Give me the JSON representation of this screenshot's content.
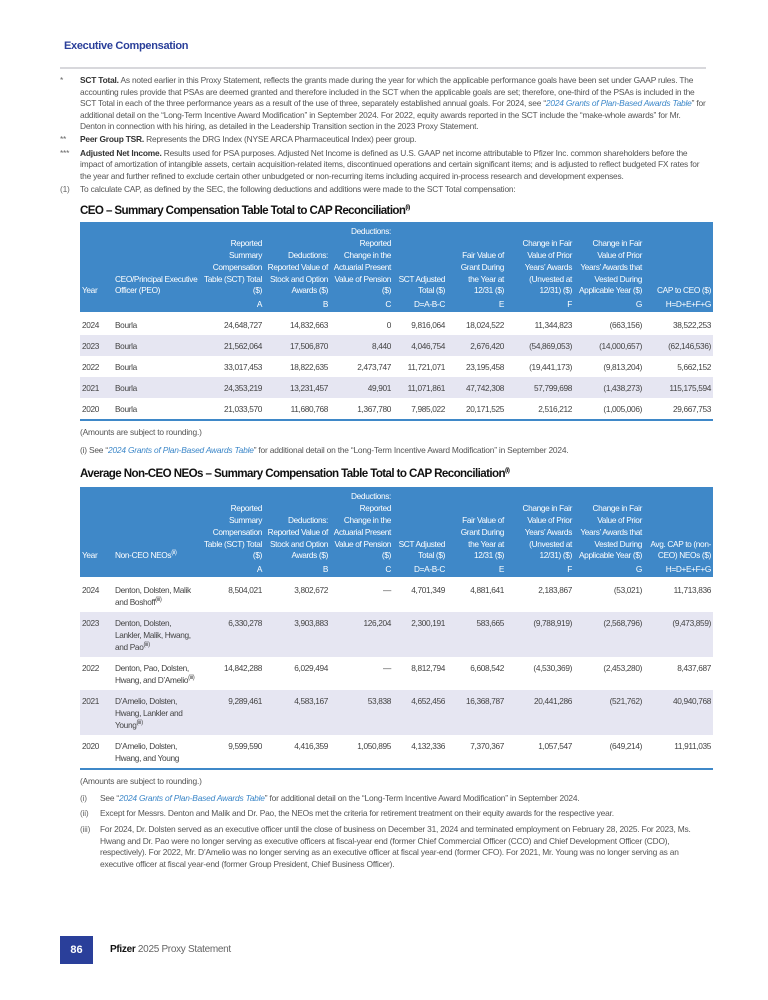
{
  "section_title": "Executive Compensation",
  "notes": [
    {
      "mark": "*",
      "bold": "SCT Total.",
      "text": " As noted earlier in this Proxy Statement, reflects the grants made during the year for which the applicable performance goals have been set under GAAP rules. The accounting rules provide that PSAs are deemed granted and therefore included in the SCT when the applicable goals are set; therefore, one-third of the PSAs is included in the SCT Total in each of the three performance years as a result of the use of three, separately established annual goals. For 2024, see “",
      "link": "2024 Grants of Plan-Based Awards Table",
      "text2": "” for additional detail on the “Long-Term Incentive Award Modification” in September 2024. For 2022, equity awards reported in the SCT include the “make-whole awards” for Mr. Denton in connection with his hiring, as detailed in the Leadership Transition section in the 2023 Proxy Statement."
    },
    {
      "mark": "**",
      "bold": "Peer Group TSR.",
      "text": " Represents the DRG Index (NYSE ARCA Pharmaceutical Index) peer group."
    },
    {
      "mark": "***",
      "bold": "Adjusted Net Income.",
      "text": " Results used for PSA purposes. Adjusted Net Income is defined as U.S. GAAP net income attributable to Pfizer Inc. common shareholders before the impact of amortization of intangible assets, certain acquisition-related items, discontinued operations and certain significant items; and is adjusted to reflect budgeted FX rates for the year and further refined to exclude certain other unbudgeted or non-recurring items including acquired in-process research and development expenses."
    },
    {
      "mark": "(1)",
      "bold": "",
      "text": "To calculate CAP, as defined by the SEC, the following deductions and additions were made to the SCT Total compensation:"
    }
  ],
  "ceo_table": {
    "title": "CEO – Summary Compensation Table Total to CAP Reconciliation",
    "title_sup": "(i)",
    "headers": [
      "Year",
      "CEO/Principal Executive Officer (PEO)",
      "Reported Summary Compensation Table (SCT) Total ($)",
      "Deductions: Reported Value of Stock and Option Awards ($)",
      "Deductions: Reported Change in the Actuarial Present Value of Pension ($)",
      "SCT Adjusted Total ($)",
      "Fair Value of Grant During the Year at 12/31 ($)",
      "Change in Fair Value of Prior Years’ Awards (Unvested at 12/31) ($)",
      "Change in Fair Value of Prior Years’ Awards that Vested During Applicable Year ($)",
      "CAP to CEO ($)"
    ],
    "letters": [
      "",
      "",
      "A",
      "B",
      "C",
      "D=A-B-C",
      "E",
      "F",
      "G",
      "H=D+E+F+G"
    ],
    "rows": [
      [
        "2024",
        "Bourla",
        "24,648,727",
        "14,832,663",
        "0",
        "9,816,064",
        "18,024,522",
        "11,344,823",
        "(663,156)",
        "38,522,253"
      ],
      [
        "2023",
        "Bourla",
        "21,562,064",
        "17,506,870",
        "8,440",
        "4,046,754",
        "2,676,420",
        "(54,869,053)",
        "(14,000,657)",
        "(62,146,536)"
      ],
      [
        "2022",
        "Bourla",
        "33,017,453",
        "18,822,635",
        "2,473,747",
        "11,721,071",
        "23,195,458",
        "(19,441,173)",
        "(9,813,204)",
        "5,662,152"
      ],
      [
        "2021",
        "Bourla",
        "24,353,219",
        "13,231,457",
        "49,901",
        "11,071,861",
        "47,742,308",
        "57,799,698",
        "(1,438,273)",
        "115,175,594"
      ],
      [
        "2020",
        "Bourla",
        "21,033,570",
        "11,680,768",
        "1,367,780",
        "7,985,022",
        "20,171,525",
        "2,516,212",
        "(1,005,006)",
        "29,667,753"
      ]
    ],
    "rounding": "(Amounts are subject to rounding.)",
    "footnote": {
      "mark": "(i) See “",
      "link": "2024 Grants of Plan-Based Awards Table",
      "text": "” for additional detail on the “Long-Term Incentive Award Modification” in September 2024."
    }
  },
  "neo_table": {
    "title": "Average Non-CEO NEOs – Summary Compensation Table Total to CAP Reconciliation",
    "title_sup": "(i)",
    "headers": [
      "Year",
      "Non-CEO NEOs",
      "Reported Summary Compensation Table (SCT) Total ($)",
      "Deductions: Reported Value of Stock and Option Awards ($)",
      "Deductions: Reported Change in the Actuarial Present Value of Pension ($)",
      "SCT Adjusted Total ($)",
      "Fair Value of Grant During the Year at 12/31 ($)",
      "Change in Fair Value of Prior Years’ Awards (Unvested at 12/31) ($)",
      "Change in Fair Value of Prior Years’ Awards that Vested During Applicable Year ($)",
      "Avg. CAP to (non-CEO) NEOs ($)"
    ],
    "name_header_sup": "(ii)",
    "letters": [
      "",
      "",
      "A",
      "B",
      "C",
      "D=A-B-C",
      "E",
      "F",
      "G",
      "H=D+E+F+G"
    ],
    "rows": [
      {
        "cells": [
          "2024",
          "Denton, Dolsten, Malik and Boshoff",
          "8,504,021",
          "3,802,672",
          "—",
          "4,701,349",
          "4,881,641",
          "2,183,867",
          "(53,021)",
          "11,713,836"
        ],
        "sup": "(iii)"
      },
      {
        "cells": [
          "2023",
          "Denton, Dolsten, Lankler, Malik, Hwang, and Pao",
          "6,330,278",
          "3,903,883",
          "126,204",
          "2,300,191",
          "583,665",
          "(9,788,919)",
          "(2,568,796)",
          "(9,473,859)"
        ],
        "sup": "(iii)"
      },
      {
        "cells": [
          "2022",
          "Denton, Pao, Dolsten, Hwang, and D’Amelio",
          "14,842,288",
          "6,029,494",
          "—",
          "8,812,794",
          "6,608,542",
          "(4,530,369)",
          "(2,453,280)",
          "8,437,687"
        ],
        "sup": "(iii)"
      },
      {
        "cells": [
          "2021",
          "D’Amelio, Dolsten, Hwang, Lankler and Young",
          "9,289,461",
          "4,583,167",
          "53,838",
          "4,652,456",
          "16,368,787",
          "20,441,286",
          "(521,762)",
          "40,940,768"
        ],
        "sup": "(iii)"
      },
      {
        "cells": [
          "2020",
          "D’Amelio, Dolsten, Hwang, and Young",
          "9,599,590",
          "4,416,359",
          "1,050,895",
          "4,132,336",
          "7,370,367",
          "1,057,547",
          "(649,214)",
          "11,911,035"
        ],
        "sup": ""
      }
    ],
    "rounding": "(Amounts are subject to rounding.)",
    "footnotes": [
      {
        "mark": "(i)",
        "pre": "See “",
        "link": "2024 Grants of Plan-Based Awards Table",
        "text": "” for additional detail on the “Long-Term Incentive Award Modification” in September 2024."
      },
      {
        "mark": "(ii)",
        "pre": "",
        "link": "",
        "text": "Except for Messrs. Denton and Malik and Dr. Pao, the NEOs met the criteria for retirement treatment on their equity awards for the respective year."
      },
      {
        "mark": "(iii)",
        "pre": "",
        "link": "",
        "text": "For 2024, Dr. Dolsten served as an executive officer until the close of business on December 31, 2024 and terminated employment on February 28, 2025. For 2023, Ms. Hwang and Dr. Pao were no longer serving as executive officers at fiscal-year end (former Chief Commercial Officer (CCO) and Chief Development Officer (CDO), respectively). For 2022, Mr. D’Amelio was no longer serving as an executive officer at fiscal year-end (former CFO). For 2021, Mr. Young was no longer serving as an executive officer at fiscal year-end (former Group President, Chief Business Officer)."
      }
    ]
  },
  "footer": {
    "page_number": "86",
    "brand": "Pfizer",
    "doc": " 2025 Proxy Statement"
  },
  "colors": {
    "accent": "#2a3f9a",
    "table_header": "#3f88c8",
    "row_stripe": "#e6e6f2",
    "link": "#3a86c8"
  }
}
